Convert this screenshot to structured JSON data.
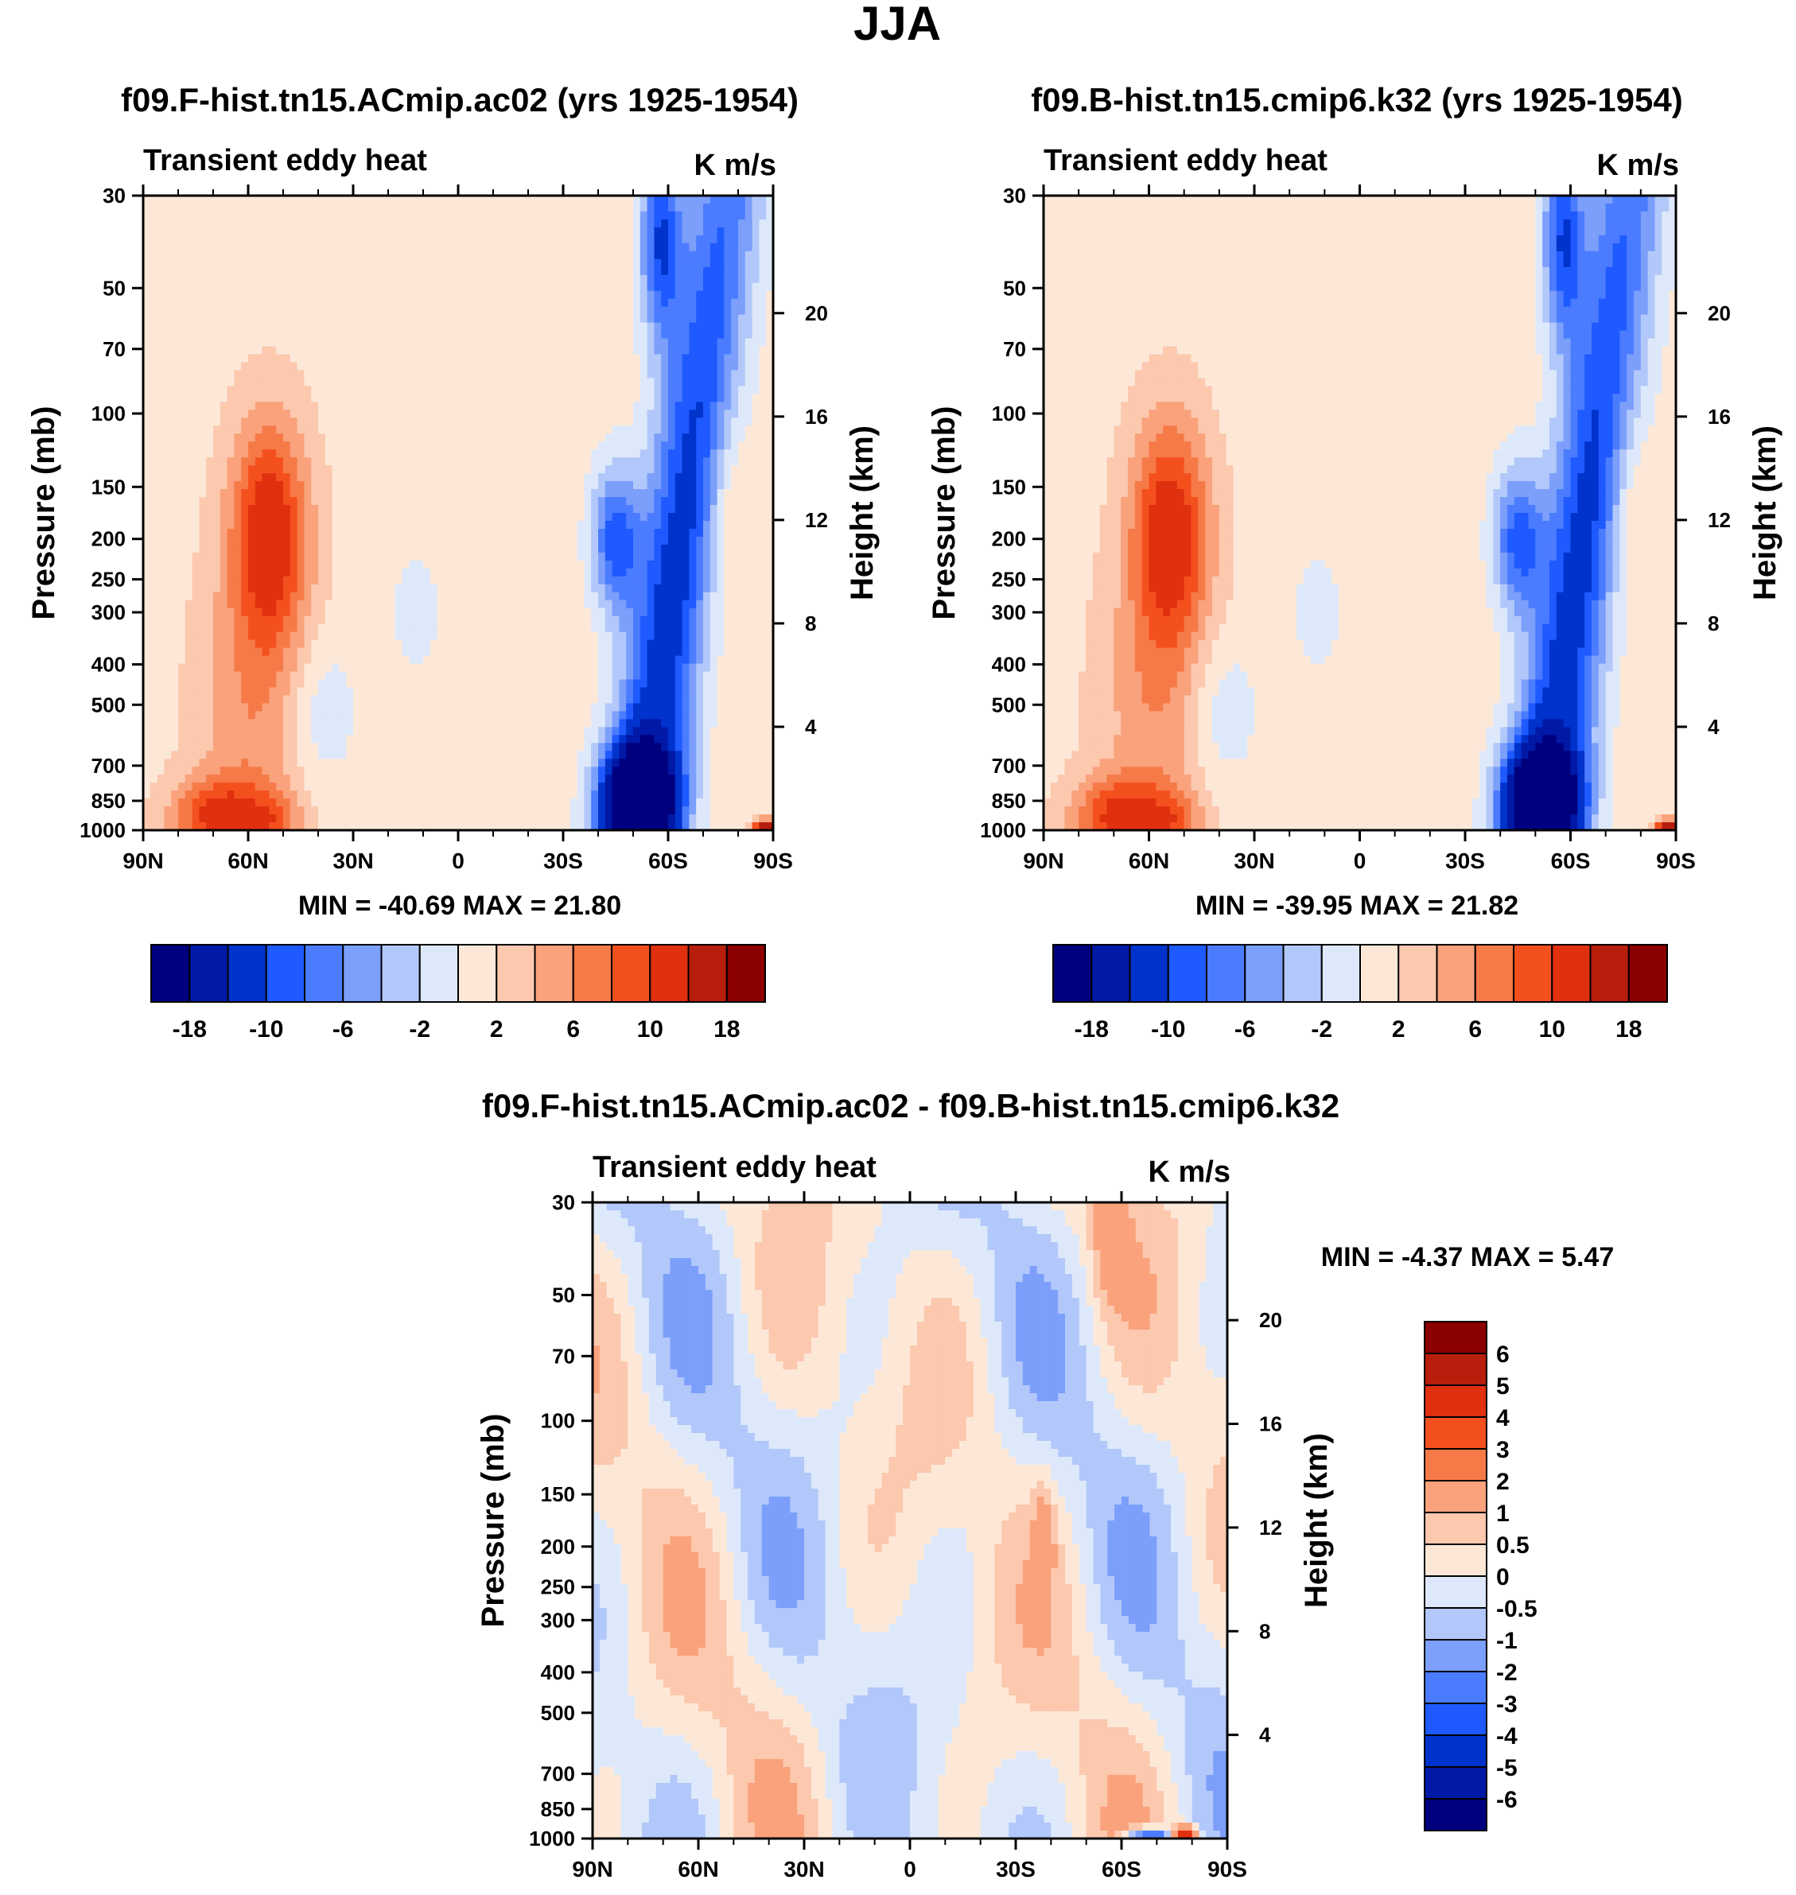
{
  "figure_title": "JJA",
  "chart_data": [
    {
      "type": "heatmap",
      "panel": "top-left",
      "title": "f09.F-hist.tn15.ACmip.ac02 (yrs 1925-1954)",
      "left_label": "Transient eddy heat",
      "units": "K m/s",
      "xlabel": "",
      "ylabel": "Pressure (mb)",
      "y2label": "Height (km)",
      "x_ticks": [
        "90N",
        "60N",
        "30N",
        "0",
        "30S",
        "60S",
        "90S"
      ],
      "y_ticks": [
        "30",
        "50",
        "70",
        "100",
        "150",
        "200",
        "250",
        "300",
        "400",
        "500",
        "700",
        "850",
        "1000"
      ],
      "y2_ticks": [
        "20",
        "16",
        "12",
        "8",
        "4"
      ],
      "stats": "MIN = -40.69  MAX =  21.80",
      "colorbar_labels": [
        "-18",
        "-10",
        "-6",
        "-2",
        "2",
        "6",
        "10",
        "18"
      ],
      "features": [
        {
          "desc": "positive maximum, mid-latitude NH upper troposphere",
          "lat": 52,
          "p": 200,
          "value": 12
        },
        {
          "desc": "positive maximum, NH near surface",
          "lat": 68,
          "p": 900,
          "value": 14
        },
        {
          "desc": "negative minimum, SH surface storm track",
          "lat": -52,
          "p": 850,
          "value": -40.69
        },
        {
          "desc": "negative core, SH upper troposphere",
          "lat": -50,
          "p": 200,
          "value": -18
        },
        {
          "desc": "negative core, SH stratosphere",
          "lat": -57,
          "p": 40,
          "value": -18
        }
      ]
    },
    {
      "type": "heatmap",
      "panel": "top-right",
      "title": "f09.B-hist.tn15.cmip6.k32 (yrs 1925-1954)",
      "left_label": "Transient eddy heat",
      "units": "K m/s",
      "xlabel": "",
      "ylabel": "Pressure (mb)",
      "y2label": "Height (km)",
      "x_ticks": [
        "90N",
        "60N",
        "30N",
        "0",
        "30S",
        "60S",
        "90S"
      ],
      "y_ticks": [
        "30",
        "50",
        "70",
        "100",
        "150",
        "200",
        "250",
        "300",
        "400",
        "500",
        "700",
        "850",
        "1000"
      ],
      "y2_ticks": [
        "20",
        "16",
        "12",
        "8",
        "4"
      ],
      "stats": "MIN = -39.95  MAX =  21.82",
      "colorbar_labels": [
        "-18",
        "-10",
        "-6",
        "-2",
        "2",
        "6",
        "10",
        "18"
      ],
      "features": [
        {
          "desc": "positive maximum, mid-latitude NH upper troposphere",
          "lat": 52,
          "p": 200,
          "value": 12
        },
        {
          "desc": "positive maximum, NH near surface",
          "lat": 68,
          "p": 900,
          "value": 14
        },
        {
          "desc": "negative minimum, SH surface storm track",
          "lat": -52,
          "p": 850,
          "value": -39.95
        },
        {
          "desc": "negative core, SH upper troposphere",
          "lat": -50,
          "p": 200,
          "value": -18
        },
        {
          "desc": "negative core, SH stratosphere",
          "lat": -57,
          "p": 40,
          "value": -18
        }
      ]
    },
    {
      "type": "heatmap",
      "panel": "bottom",
      "title": "f09.F-hist.tn15.ACmip.ac02 - f09.B-hist.tn15.cmip6.k32",
      "left_label": "Transient eddy heat",
      "units": "K m/s",
      "xlabel": "",
      "ylabel": "Pressure (mb)",
      "y2label": "Height (km)",
      "x_ticks": [
        "90N",
        "60N",
        "30N",
        "0",
        "30S",
        "60S",
        "90S"
      ],
      "y_ticks": [
        "30",
        "50",
        "70",
        "100",
        "150",
        "200",
        "250",
        "300",
        "400",
        "500",
        "700",
        "850",
        "1000"
      ],
      "y2_ticks": [
        "20",
        "16",
        "12",
        "8",
        "4"
      ],
      "stats": "MIN =  -4.37  MAX =   5.47",
      "colorbar_labels": [
        "6",
        "5",
        "4",
        "3",
        "2",
        "1",
        "0.5",
        "0",
        "-0.5",
        "-1",
        "-2",
        "-3",
        "-4",
        "-5",
        "-6"
      ],
      "features": [
        {
          "desc": "differences mostly within +/-0.5 everywhere",
          "lat": 0,
          "p": 300,
          "value": 0.3
        },
        {
          "desc": "small extreme differences near Antarctic surface",
          "lat": -70,
          "p": 1000,
          "value": 5.47
        }
      ]
    }
  ],
  "colormaps": {
    "main": [
      "#00007f",
      "#0019a6",
      "#0033cc",
      "#1e5aff",
      "#4b7cff",
      "#7b9ffa",
      "#b2c8fa",
      "#dde9fa",
      "#fde8d8",
      "#fcc8ae",
      "#f9a27c",
      "#f67a48",
      "#f4501e",
      "#e03010",
      "#b81e0c",
      "#8b0000"
    ],
    "diff": [
      "#00007f",
      "#0019a6",
      "#0033cc",
      "#1e5aff",
      "#4b7cff",
      "#7b9ffa",
      "#b2c8fa",
      "#dde9fa",
      "#fde8d8",
      "#fcc8ae",
      "#f9a27c",
      "#f67a48",
      "#f4501e",
      "#e03010",
      "#b81e0c",
      "#8b0000"
    ]
  }
}
